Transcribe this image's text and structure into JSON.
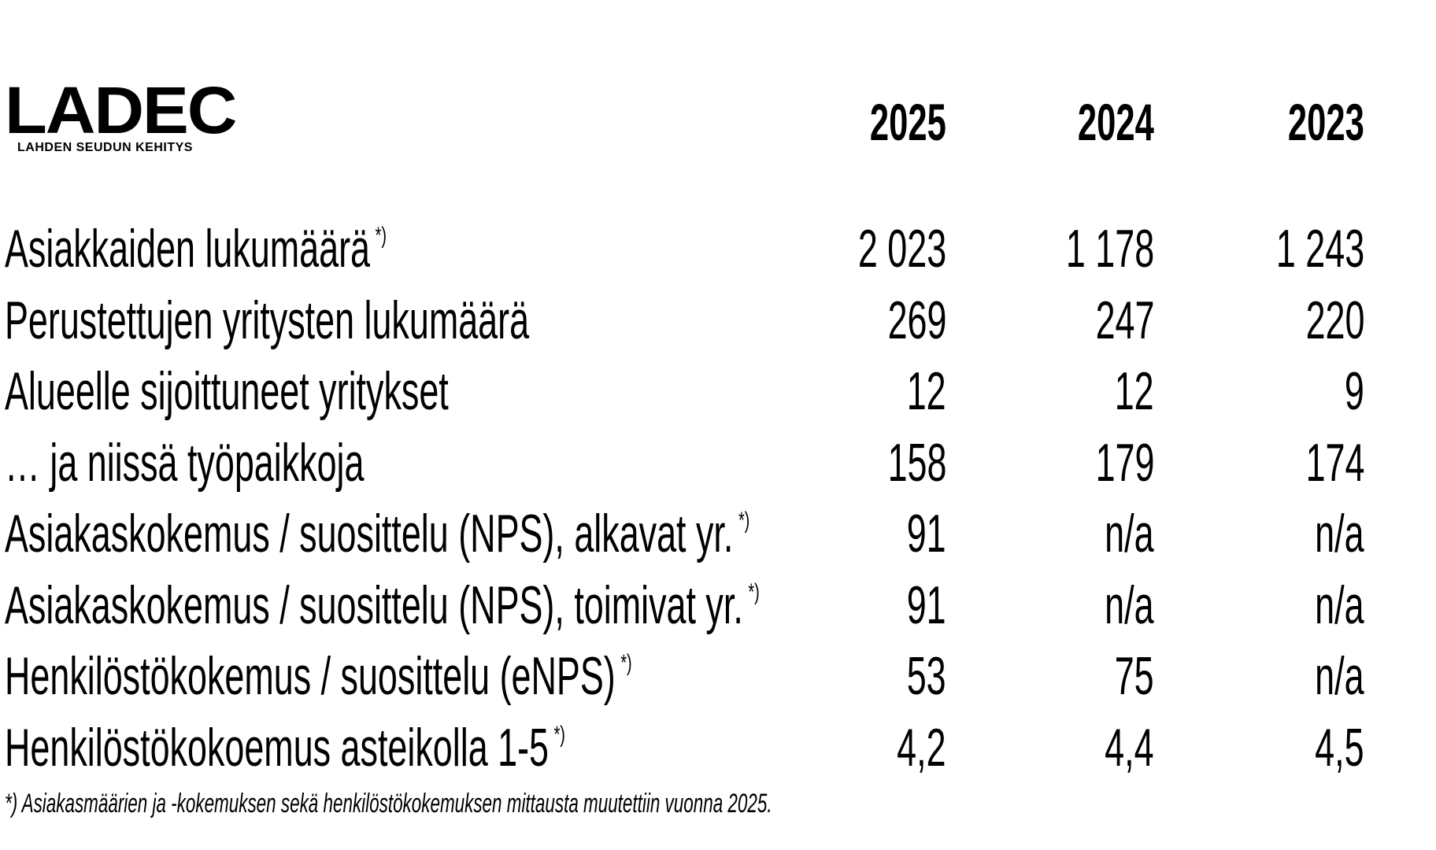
{
  "header": {
    "logo": "LADEC",
    "logo_subtitle": "LAHDEN SEUDUN KEHITYS",
    "years": [
      "2025",
      "2024",
      "2023"
    ]
  },
  "table": {
    "rows": [
      {
        "label": "Asiakkaiden lukumäärä",
        "note": "*)",
        "values": [
          "2 023",
          "1 178",
          "1 243"
        ]
      },
      {
        "label": "Perustettujen yritysten lukumäärä",
        "values": [
          "269",
          "247",
          "220"
        ]
      },
      {
        "label": "Alueelle sijoittuneet yritykset",
        "values": [
          "12",
          "12",
          "9"
        ]
      },
      {
        "label": "… ja niissä työpaikkoja",
        "values": [
          "158",
          "179",
          "174"
        ]
      },
      {
        "label": "Asiakaskokemus / suosittelu (NPS), alkavat yr.",
        "note": "*)",
        "values": [
          "91",
          "n/a",
          "n/a"
        ]
      },
      {
        "label": "Asiakaskokemus / suosittelu (NPS), toimivat yr.",
        "note": "*)",
        "values": [
          "91",
          "n/a",
          "n/a"
        ]
      },
      {
        "label": "Henkilöstökokemus / suosittelu (eNPS)",
        "note": "*)",
        "values": [
          "53",
          "75",
          "n/a"
        ]
      },
      {
        "label": "Henkilöstökokoemus asteikolla 1-5",
        "note": "*)",
        "values": [
          "4,2",
          "4,4",
          "4,5"
        ]
      }
    ]
  },
  "footnote": "*) Asiakasmäärien ja -kokemuksen sekä henkilöstökokemuksen mittausta muutettiin vuonna 2025."
}
